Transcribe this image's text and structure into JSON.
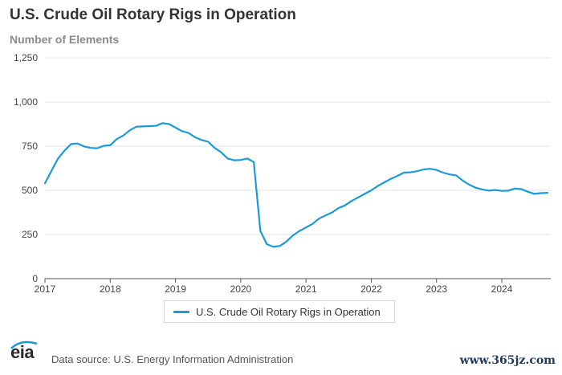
{
  "header": {
    "title": "U.S. Crude Oil Rotary Rigs in Operation",
    "subtitle": "Number of Elements"
  },
  "footer": {
    "logo_text": "eia",
    "source": "Data source: U.S. Energy Information Administration",
    "watermark": "www.365jz.com"
  },
  "colors": {
    "series": "#1a9ad6",
    "grid": "#e3e3e3",
    "axis": "#444444"
  },
  "chart_data": {
    "type": "line",
    "title": "U.S. Crude Oil Rotary Rigs in Operation",
    "ylabel": "Number of Elements",
    "xlabel": "",
    "xlim": [
      2017.0,
      2024.75
    ],
    "ylim": [
      0,
      1250
    ],
    "y_ticks": [
      0,
      250,
      500,
      750,
      1000,
      1250
    ],
    "y_tick_labels": [
      "0",
      "250",
      "500",
      "750",
      "1,000",
      "1,250"
    ],
    "x_ticks": [
      2017,
      2018,
      2019,
      2020,
      2021,
      2022,
      2023,
      2024
    ],
    "x_tick_labels": [
      "2017",
      "2018",
      "2019",
      "2020",
      "2021",
      "2022",
      "2023",
      "2024"
    ],
    "grid": true,
    "legend_position": "bottom-center",
    "series": [
      {
        "name": "U.S. Crude Oil Rotary Rigs in Operation",
        "x": [
          2017.0,
          2017.1,
          2017.2,
          2017.3,
          2017.4,
          2017.5,
          2017.6,
          2017.7,
          2017.8,
          2017.9,
          2018.0,
          2018.1,
          2018.2,
          2018.3,
          2018.4,
          2018.5,
          2018.6,
          2018.7,
          2018.8,
          2018.9,
          2019.0,
          2019.1,
          2019.2,
          2019.3,
          2019.4,
          2019.5,
          2019.6,
          2019.7,
          2019.8,
          2019.9,
          2020.0,
          2020.1,
          2020.2,
          2020.3,
          2020.4,
          2020.5,
          2020.6,
          2020.7,
          2020.8,
          2020.9,
          2021.0,
          2021.1,
          2021.2,
          2021.3,
          2021.4,
          2021.5,
          2021.6,
          2021.7,
          2021.8,
          2021.9,
          2022.0,
          2022.1,
          2022.2,
          2022.3,
          2022.4,
          2022.5,
          2022.6,
          2022.7,
          2022.8,
          2022.9,
          2023.0,
          2023.1,
          2023.2,
          2023.3,
          2023.4,
          2023.5,
          2023.6,
          2023.7,
          2023.8,
          2023.9,
          2024.0,
          2024.1,
          2024.2,
          2024.3,
          2024.4,
          2024.5,
          2024.6,
          2024.7
        ],
        "values": [
          540,
          610,
          680,
          725,
          762,
          765,
          748,
          740,
          738,
          752,
          755,
          790,
          810,
          840,
          860,
          862,
          863,
          865,
          880,
          875,
          855,
          835,
          825,
          800,
          785,
          775,
          740,
          715,
          680,
          670,
          672,
          680,
          660,
          270,
          195,
          180,
          185,
          210,
          245,
          270,
          290,
          310,
          340,
          358,
          375,
          400,
          415,
          440,
          460,
          480,
          500,
          525,
          545,
          565,
          582,
          600,
          602,
          608,
          618,
          622,
          615,
          600,
          590,
          585,
          555,
          532,
          515,
          505,
          498,
          502,
          497,
          498,
          510,
          507,
          492,
          480,
          484,
          486
        ]
      }
    ]
  }
}
